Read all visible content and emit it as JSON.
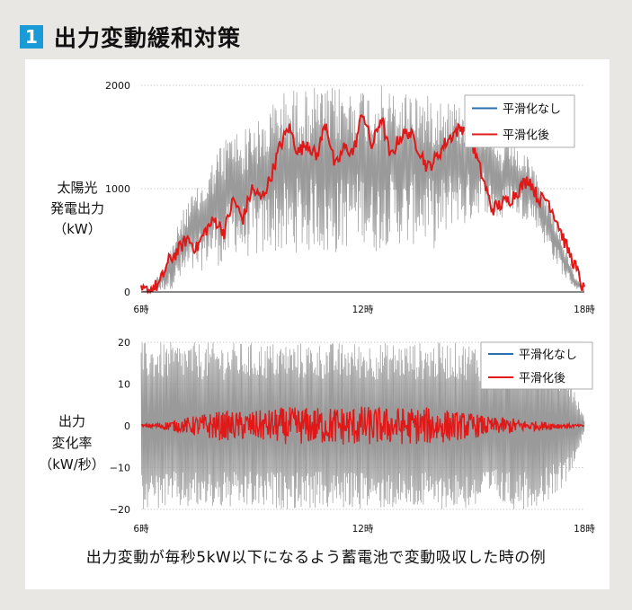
{
  "header": {
    "badge": "1",
    "title": "出力変動緩和対策"
  },
  "caption": "出力変動が毎秒5kW以下になるよう蓄電池で変動吸収した時の例",
  "colors": {
    "raw": "#9a9a9a",
    "smoothed": "#e01818",
    "legend_raw": "#2a6fb0",
    "legend_smoothed": "#e01818",
    "badge": "#1a9ad6"
  },
  "chart_data": [
    {
      "type": "line",
      "ylabel_lines": [
        "太陽光",
        "発電出力",
        "（kW）"
      ],
      "ylim": [
        0,
        2000
      ],
      "yticks": [
        "0",
        "1000",
        "2000"
      ],
      "xlim": [
        6,
        18
      ],
      "xticks": [
        {
          "value": 6,
          "label": "6時"
        },
        {
          "value": 12,
          "label": "12時"
        },
        {
          "value": 18,
          "label": "18時"
        }
      ],
      "legend": [
        "平滑化なし",
        "平滑化後"
      ],
      "legend_position": "top-right",
      "series": [
        {
          "name": "平滑化なし",
          "x": [
            6.0,
            6.25,
            6.5,
            6.75,
            7.0,
            7.25,
            7.5,
            7.75,
            8.0,
            8.25,
            8.5,
            8.75,
            9.0,
            9.25,
            9.5,
            9.75,
            10.0,
            10.25,
            10.5,
            10.75,
            11.0,
            11.25,
            11.5,
            11.75,
            12.0,
            12.25,
            12.5,
            12.75,
            13.0,
            13.25,
            13.5,
            13.75,
            14.0,
            14.25,
            14.5,
            14.75,
            15.0,
            15.25,
            15.5,
            15.75,
            16.0,
            16.25,
            16.5,
            16.75,
            17.0,
            17.25,
            17.5,
            17.75,
            18.0
          ],
          "y_high": [
            0,
            30,
            200,
            380,
            650,
            900,
            1000,
            1100,
            1350,
            1500,
            1600,
            1550,
            1700,
            1650,
            1800,
            1950,
            1950,
            2000,
            1950,
            2000,
            1950,
            2000,
            2000,
            1950,
            2000,
            1950,
            2000,
            1950,
            1900,
            2000,
            1950,
            1900,
            1950,
            1900,
            1850,
            1800,
            1750,
            1700,
            1500,
            1400,
            1450,
            1350,
            1300,
            1100,
            900,
            700,
            400,
            150,
            20
          ],
          "y_low": [
            0,
            0,
            0,
            20,
            60,
            120,
            150,
            250,
            280,
            200,
            400,
            300,
            350,
            300,
            400,
            350,
            300,
            400,
            350,
            450,
            300,
            350,
            400,
            500,
            500,
            350,
            400,
            500,
            450,
            400,
            500,
            450,
            400,
            500,
            700,
            600,
            700,
            800,
            700,
            650,
            800,
            700,
            700,
            600,
            400,
            250,
            120,
            30,
            0
          ]
        },
        {
          "name": "平滑化後",
          "x": [
            6.0,
            6.25,
            6.5,
            6.75,
            7.0,
            7.25,
            7.5,
            7.75,
            8.0,
            8.25,
            8.5,
            8.75,
            9.0,
            9.25,
            9.5,
            9.75,
            10.0,
            10.25,
            10.5,
            10.75,
            11.0,
            11.25,
            11.5,
            11.75,
            12.0,
            12.25,
            12.5,
            12.75,
            13.0,
            13.25,
            13.5,
            13.75,
            14.0,
            14.25,
            14.5,
            14.75,
            15.0,
            15.25,
            15.5,
            15.75,
            16.0,
            16.25,
            16.5,
            16.75,
            17.0,
            17.25,
            17.5,
            17.75,
            18.0
          ],
          "y": [
            0,
            20,
            80,
            300,
            400,
            520,
            420,
            600,
            700,
            580,
            900,
            700,
            1000,
            900,
            1100,
            1400,
            1600,
            1350,
            1450,
            1300,
            1650,
            1200,
            1400,
            1350,
            1750,
            1400,
            1700,
            1300,
            1500,
            1550,
            1400,
            1200,
            1300,
            1450,
            1550,
            1600,
            1400,
            1100,
            800,
            850,
            900,
            1000,
            1100,
            900,
            900,
            700,
            450,
            250,
            0
          ]
        }
      ]
    },
    {
      "type": "line",
      "ylabel_lines": [
        "出力",
        "変化率",
        "（kW/秒）"
      ],
      "ylim": [
        -20,
        20
      ],
      "yticks": [
        "20",
        "10",
        "0",
        "−10",
        "−20"
      ],
      "xlim": [
        6,
        18
      ],
      "xticks": [
        {
          "value": 6,
          "label": "6時"
        },
        {
          "value": 12,
          "label": "12時"
        },
        {
          "value": 18,
          "label": "18時"
        }
      ],
      "legend": [
        "平滑化なし",
        "平滑化後"
      ],
      "legend_position": "top-right",
      "series": [
        {
          "name": "平滑化なし",
          "x": [
            6.0,
            6.5,
            7.0,
            7.5,
            8.0,
            8.5,
            9.0,
            9.5,
            10.0,
            10.5,
            11.0,
            11.5,
            12.0,
            12.5,
            13.0,
            13.5,
            14.0,
            14.5,
            15.0,
            15.5,
            16.0,
            16.5,
            17.0,
            17.5,
            18.0
          ],
          "amplitude": [
            20,
            20,
            20,
            20,
            20,
            20,
            20,
            20,
            20,
            20,
            20,
            20,
            20,
            20,
            20,
            20,
            20,
            20,
            20,
            18,
            20,
            20,
            18,
            14,
            2
          ]
        },
        {
          "name": "平滑化後",
          "x": [
            6.0,
            6.5,
            7.0,
            7.5,
            8.0,
            8.5,
            9.0,
            9.5,
            10.0,
            10.5,
            11.0,
            11.5,
            12.0,
            12.5,
            13.0,
            13.5,
            14.0,
            14.5,
            15.0,
            15.5,
            16.0,
            16.5,
            17.0,
            17.5,
            18.0
          ],
          "amplitude": [
            0.3,
            0.8,
            1.5,
            2.5,
            3.5,
            3.5,
            3.5,
            4,
            4.5,
            4.5,
            4.5,
            4.8,
            4.8,
            4.5,
            4.5,
            4.5,
            4.5,
            3.5,
            3,
            2,
            2,
            1.2,
            1,
            0.6,
            0.2
          ]
        }
      ]
    }
  ]
}
